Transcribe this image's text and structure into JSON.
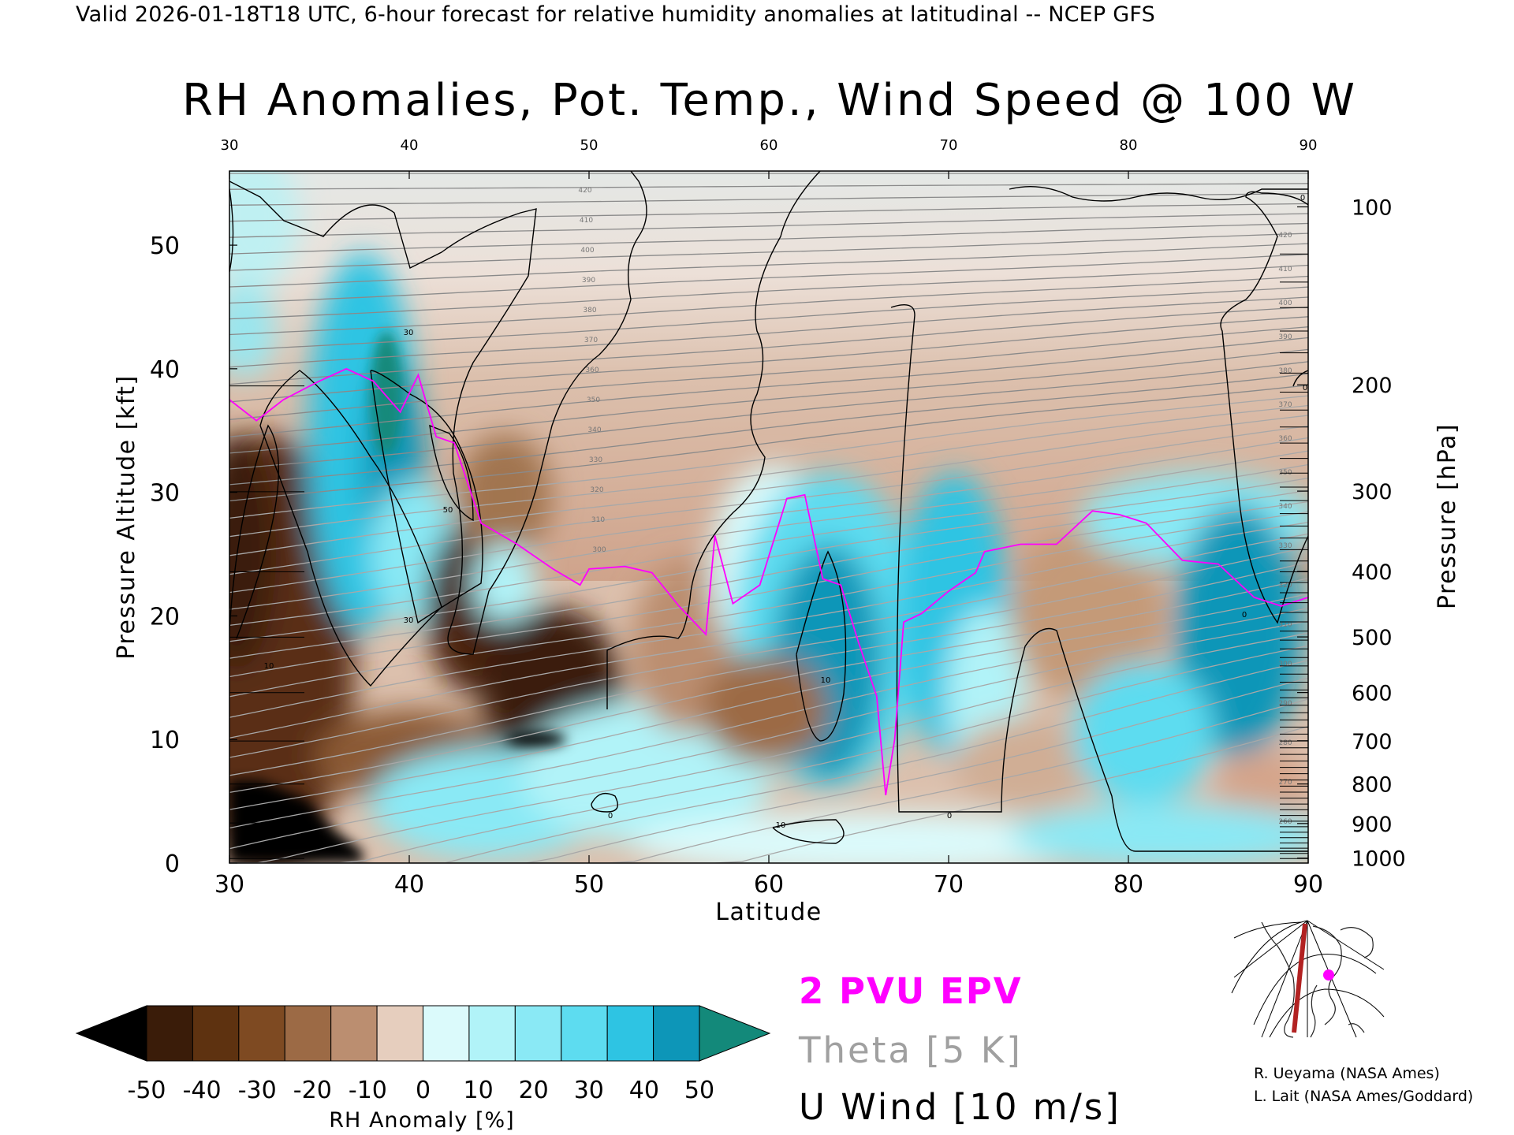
{
  "header": {
    "valid_line": "Valid 2026-01-18T18 UTC, 6-hour forecast for relative humidity anomalies at latitudinal -- NCEP GFS",
    "title": "RH Anomalies, Pot. Temp., Wind Speed @ 100 W"
  },
  "colors": {
    "epv": "#ff00ff",
    "theta": "#a0a0a0",
    "wind": "#000000",
    "map_path": "#b22222",
    "map_point": "#ff00ff"
  },
  "chart_data": {
    "type": "heatmap",
    "title": "RH Anomalies, Pot. Temp., Wind Speed @ 100 W",
    "xlabel": "Latitude",
    "ylabel": "Pressure Altitude [kft]",
    "y2label": "Pressure [hPa]",
    "xlim": [
      30,
      90
    ],
    "ylim": [
      0,
      56
    ],
    "x_ticks": [
      "30",
      "40",
      "50",
      "60",
      "70",
      "80",
      "90"
    ],
    "y_ticks": [
      "0",
      "10",
      "20",
      "30",
      "40",
      "50"
    ],
    "pressure_ticks": [
      {
        "label": "1000",
        "kft": 0.4
      },
      {
        "label": "900",
        "kft": 3.2
      },
      {
        "label": "800",
        "kft": 6.4
      },
      {
        "label": "700",
        "kft": 9.9
      },
      {
        "label": "600",
        "kft": 13.8
      },
      {
        "label": "500",
        "kft": 18.3
      },
      {
        "label": "400",
        "kft": 23.6
      },
      {
        "label": "300",
        "kft": 30.1
      },
      {
        "label": "200",
        "kft": 38.7
      },
      {
        "label": "100",
        "kft": 53.1
      }
    ],
    "colorbar": {
      "label": "RH Anomaly [%]",
      "ticks": [
        "-50",
        "-40",
        "-30",
        "-20",
        "-10",
        "0",
        "10",
        "20",
        "30",
        "40",
        "50"
      ],
      "colors": [
        "#000000",
        "#3a1c09",
        "#5e3210",
        "#7e4a22",
        "#9c6a45",
        "#bb8e70",
        "#e6cebe",
        "#dbfafb",
        "#b1f3f8",
        "#8ae9f5",
        "#5ddcf0",
        "#2ec4e3",
        "#0d96b8",
        "#13897a"
      ]
    },
    "legend": [
      "2 PVU EPV",
      "Theta [5 K]",
      "U Wind [10 m/s]"
    ],
    "theta_labels": [
      "260",
      "270",
      "280",
      "290",
      "300",
      "310",
      "320",
      "330",
      "340",
      "350",
      "360",
      "370",
      "380",
      "390",
      "400",
      "410",
      "420"
    ],
    "wind_contour_labels": [
      "10",
      "0",
      "30",
      "50",
      "30",
      "10",
      "0",
      "10",
      "0",
      "0",
      "0"
    ],
    "epv_2pvu": {
      "lat": [
        30,
        31.5,
        33,
        35,
        36.5,
        38,
        39.5,
        40.5,
        41.5,
        42.5,
        44,
        46,
        48,
        49.5,
        50,
        52,
        53.5,
        55,
        56.5,
        57,
        58,
        59.5,
        61,
        62,
        63,
        64,
        65,
        66,
        66.5,
        67,
        67.5,
        68.5,
        70,
        71.5,
        72,
        74,
        76,
        78,
        79.5,
        81,
        83,
        85,
        87,
        88.5,
        90
      ],
      "kft": [
        37.5,
        35.8,
        37.5,
        39,
        40,
        39,
        36.5,
        39.5,
        34.5,
        34,
        27.5,
        25.8,
        23.8,
        22.5,
        23.8,
        24,
        23.5,
        20.8,
        18.5,
        26.5,
        21,
        22.5,
        29.5,
        29.8,
        23,
        22.5,
        17.8,
        13.5,
        5.5,
        10,
        19.5,
        20.2,
        22,
        23.5,
        25.2,
        25.8,
        25.8,
        28.5,
        28.2,
        27.5,
        24.5,
        24.2,
        21.5,
        20.8,
        21.5
      ]
    },
    "rh_anomaly_regions": [
      {
        "desc": "dry",
        "lat": [
          30,
          33
        ],
        "kft": [
          0,
          10
        ],
        "value": -50
      },
      {
        "desc": "dry",
        "lat": [
          30,
          35
        ],
        "kft": [
          8,
          30
        ],
        "value": -35
      },
      {
        "desc": "moist",
        "lat": [
          36,
          40
        ],
        "kft": [
          16,
          40
        ],
        "value": 40
      },
      {
        "desc": "dry",
        "lat": [
          41,
          44
        ],
        "kft": [
          16,
          26
        ],
        "value": -40
      },
      {
        "desc": "dry",
        "lat": [
          45,
          50
        ],
        "kft": [
          8,
          20
        ],
        "value": -40
      },
      {
        "desc": "moist",
        "lat": [
          60,
          65
        ],
        "kft": [
          8,
          24
        ],
        "value": 40
      },
      {
        "desc": "dry",
        "lat": [
          72,
          80
        ],
        "kft": [
          8,
          24
        ],
        "value": -15
      },
      {
        "desc": "moist",
        "lat": [
          84,
          90
        ],
        "kft": [
          8,
          26
        ],
        "value": 40
      }
    ]
  },
  "credits": {
    "line1": "R. Ueyama (NASA Ames)",
    "line2": "L. Lait (NASA Ames/Goddard)"
  }
}
